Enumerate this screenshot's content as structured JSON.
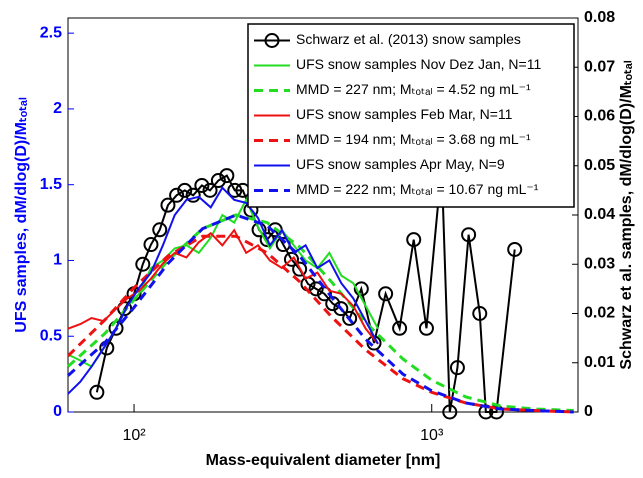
{
  "chart_data": {
    "type": "line",
    "xlabel": "Mass-equivalent diameter [nm]",
    "ylabel": "UFS samples, dM/dlog(D)/Mₜₒₜₐₗ",
    "ylabel_color": "#0000ff",
    "y2label": "Schwarz et al. samples, dM/dlog(D)/Mₜₒₜₐₗ",
    "xscale": "log",
    "xlim": [
      60,
      3100
    ],
    "xticks": [
      {
        "value": 100,
        "label": "10²"
      },
      {
        "value": 1000,
        "label": "10³"
      }
    ],
    "ylim": [
      0,
      2.6
    ],
    "yticks": [
      0,
      0.5,
      1,
      1.5,
      2,
      2.5
    ],
    "y2lim": [
      0,
      0.08
    ],
    "y2ticks": [
      0,
      0.01,
      0.02,
      0.03,
      0.04,
      0.05,
      0.06,
      0.07,
      0.08
    ],
    "legend": "upper right",
    "series": [
      {
        "name": "Schwarz et al. (2013) snow samples",
        "color": "#000000",
        "style": "solid",
        "marker": "circle",
        "axis": "y2",
        "x": [
          75,
          81,
          87,
          93,
          100,
          107,
          114,
          122,
          130,
          139,
          148,
          158,
          169,
          180,
          192,
          205,
          218,
          232,
          247,
          263,
          280,
          298,
          317,
          338,
          360,
          384,
          409,
          436,
          465,
          495,
          530,
          580,
          640,
          700,
          780,
          870,
          960,
          1080,
          1150,
          1220,
          1330,
          1450,
          1520,
          1650,
          1900
        ],
        "values": [
          0.004,
          0.013,
          0.017,
          0.021,
          0.024,
          0.03,
          0.034,
          0.037,
          0.042,
          0.044,
          0.045,
          0.044,
          0.046,
          0.045,
          0.047,
          0.048,
          0.045,
          0.045,
          0.041,
          0.037,
          0.035,
          0.037,
          0.034,
          0.031,
          0.029,
          0.026,
          0.025,
          0.024,
          0.022,
          0.021,
          0.019,
          0.025,
          0.014,
          0.024,
          0.017,
          0.035,
          0.017,
          0.05,
          0.0,
          0.009,
          0.036,
          0.02,
          0.0,
          0.0,
          0.033
        ]
      },
      {
        "name": "UFS snow samples Nov Dez Jan, N=11",
        "color": "#22dd22",
        "style": "solid",
        "x": [
          60,
          66,
          72,
          79,
          87,
          95,
          104,
          114,
          125,
          137,
          150,
          165,
          181,
          198,
          217,
          238,
          261,
          286,
          314,
          344,
          377,
          413,
          453,
          497,
          545,
          600,
          660
        ],
        "values": [
          0.38,
          0.34,
          0.3,
          0.42,
          0.55,
          0.7,
          0.78,
          0.95,
          1.0,
          1.08,
          1.1,
          1.05,
          1.15,
          1.3,
          1.25,
          1.4,
          1.22,
          1.08,
          1.2,
          1.1,
          1.0,
          0.95,
          1.05,
          0.9,
          0.85,
          0.7,
          0.55
        ]
      },
      {
        "name": "MMD = 227 nm; Mₜₒₜₐₗ = 4.52 ng mL⁻¹",
        "color": "#22dd22",
        "style": "dashed",
        "x": [
          60,
          80,
          100,
          130,
          170,
          220,
          280,
          360,
          460,
          600,
          800,
          1000,
          1300,
          1700,
          2200,
          3000
        ],
        "values": [
          0.3,
          0.52,
          0.74,
          1.0,
          1.21,
          1.3,
          1.25,
          1.09,
          0.86,
          0.59,
          0.35,
          0.21,
          0.1,
          0.04,
          0.02,
          0.01
        ]
      },
      {
        "name": "UFS snow samples Feb Mar, N=11",
        "color": "#ee1111",
        "style": "solid",
        "x": [
          60,
          66,
          72,
          79,
          87,
          95,
          104,
          114,
          125,
          137,
          150,
          165,
          181,
          198,
          217,
          238,
          261,
          286,
          314,
          344,
          377,
          413,
          453,
          497,
          545,
          600,
          660
        ],
        "values": [
          0.55,
          0.58,
          0.62,
          0.6,
          0.68,
          0.75,
          0.8,
          0.88,
          0.98,
          1.05,
          1.02,
          1.12,
          1.18,
          1.1,
          1.2,
          1.05,
          1.1,
          1.0,
          0.95,
          1.02,
          0.88,
          0.92,
          0.8,
          0.78,
          0.7,
          0.55,
          0.45
        ]
      },
      {
        "name": "MMD = 194 nm; Mₜₒₜₐₗ = 3.68 ng mL⁻¹",
        "color": "#ee1111",
        "style": "dashed",
        "x": [
          60,
          80,
          100,
          130,
          170,
          220,
          280,
          360,
          460,
          600,
          800,
          1000,
          1300,
          1700,
          2200,
          3000
        ],
        "values": [
          0.37,
          0.61,
          0.82,
          1.03,
          1.16,
          1.16,
          1.05,
          0.86,
          0.63,
          0.41,
          0.22,
          0.13,
          0.06,
          0.02,
          0.01,
          0
        ]
      },
      {
        "name": "UFS snow samples Apr May, N=9",
        "color": "#1111ee",
        "style": "solid",
        "x": [
          60,
          66,
          72,
          79,
          87,
          95,
          104,
          114,
          125,
          137,
          150,
          165,
          181,
          198,
          217,
          238,
          261,
          286,
          314,
          344,
          377,
          413,
          453,
          497,
          545,
          600,
          660
        ],
        "values": [
          0.12,
          0.2,
          0.3,
          0.42,
          0.55,
          0.7,
          0.82,
          0.92,
          1.1,
          1.3,
          1.4,
          1.42,
          1.35,
          1.48,
          1.4,
          1.38,
          1.28,
          1.1,
          1.2,
          1.05,
          1.1,
          0.95,
          1.0,
          0.85,
          0.75,
          0.6,
          0.45
        ]
      },
      {
        "name": "MMD = 222 nm; Mₜₒₜₐₗ = 10.67 ng mL⁻¹",
        "color": "#1111ee",
        "style": "dashed",
        "x": [
          60,
          80,
          100,
          130,
          170,
          220,
          280,
          360,
          460,
          600,
          800,
          1000,
          1300,
          1700,
          2200,
          3000
        ],
        "values": [
          0.24,
          0.46,
          0.69,
          0.98,
          1.21,
          1.3,
          1.23,
          1.03,
          0.76,
          0.48,
          0.25,
          0.14,
          0.06,
          0.02,
          0.01,
          0
        ]
      }
    ]
  }
}
